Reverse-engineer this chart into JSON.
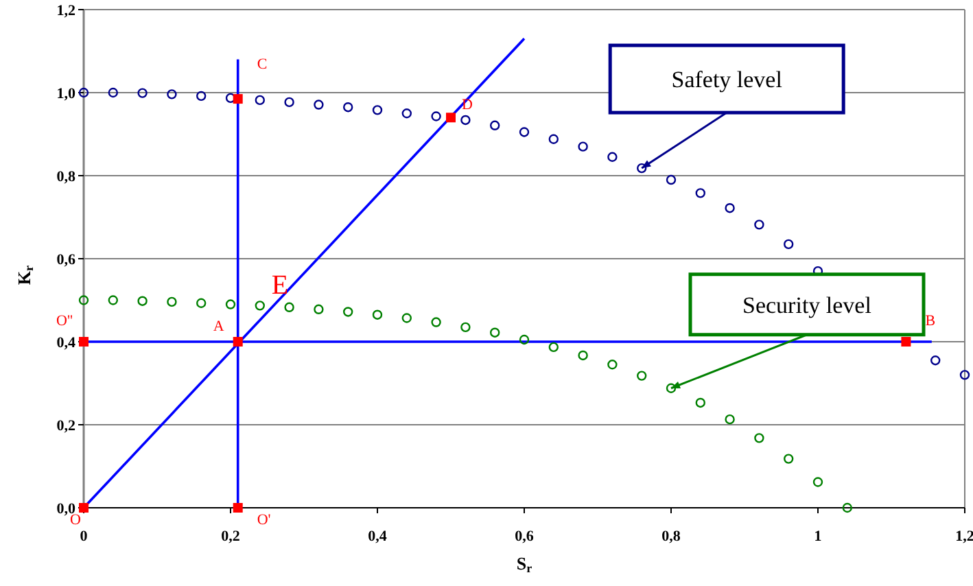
{
  "chart_data": {
    "type": "scatter",
    "xlabel": "S$_{r}$",
    "ylabel": "K$_{r}$",
    "xlim": [
      0,
      1.2
    ],
    "ylim": [
      0,
      1.2
    ],
    "xticks": [
      0,
      {
        "value": 0.2,
        "label": "0,2"
      },
      {
        "value": 0.4,
        "label": "0,4"
      },
      {
        "value": 0.6,
        "label": "0,6"
      },
      {
        "value": 0.8,
        "label": "0,8"
      },
      1,
      {
        "value": 1.2,
        "label": "1,2"
      }
    ],
    "yticks": [
      {
        "value": 0,
        "label": "0,0"
      },
      {
        "value": 0.2,
        "label": "0,2"
      },
      {
        "value": 0.4,
        "label": "0,4"
      },
      {
        "value": 0.6,
        "label": "0,6"
      },
      {
        "value": 0.8,
        "label": "0,8"
      },
      {
        "value": 1,
        "label": "1,0"
      },
      {
        "value": 1.2,
        "label": "1,2"
      }
    ],
    "grid": "y",
    "series": [
      {
        "type": "line",
        "marker": "none",
        "color": "#0000ff",
        "x": [
          0.21,
          0.21
        ],
        "values": [
          0,
          1.08
        ]
      },
      {
        "type": "line",
        "marker": "none",
        "color": "#0000ff",
        "x": [
          0,
          0.6
        ],
        "values": [
          0,
          1.13
        ]
      },
      {
        "type": "line",
        "marker": "none",
        "color": "#0000ff",
        "x": [
          0,
          1.155
        ],
        "values": [
          0.4,
          0.4
        ]
      },
      {
        "marker": "circle",
        "color": "#00008b",
        "x": [
          0,
          0.04,
          0.08,
          0.12,
          0.16,
          0.2,
          0.24,
          0.28,
          0.32,
          0.36,
          0.4,
          0.44,
          0.48,
          0.52,
          0.56,
          0.6,
          0.64,
          0.68,
          0.72,
          0.76,
          0.8,
          0.84,
          0.88,
          0.92,
          0.96,
          1.0,
          1.16,
          1.2
        ],
        "values": [
          1.0,
          1.0,
          0.999,
          0.996,
          0.992,
          0.987,
          0.982,
          0.977,
          0.971,
          0.965,
          0.958,
          0.95,
          0.943,
          0.934,
          0.921,
          0.905,
          0.888,
          0.87,
          0.845,
          0.818,
          0.79,
          0.758,
          0.722,
          0.682,
          0.635,
          0.57,
          0.355,
          0.32
        ]
      },
      {
        "marker": "circle",
        "color": "#008000",
        "x": [
          0,
          0.04,
          0.08,
          0.12,
          0.16,
          0.2,
          0.24,
          0.28,
          0.32,
          0.36,
          0.4,
          0.44,
          0.48,
          0.52,
          0.56,
          0.6,
          0.64,
          0.68,
          0.72,
          0.76,
          0.8,
          0.84,
          0.88,
          0.92,
          0.96,
          1.0,
          1.04
        ],
        "values": [
          0.5,
          0.5,
          0.498,
          0.496,
          0.493,
          0.49,
          0.487,
          0.483,
          0.478,
          0.472,
          0.465,
          0.457,
          0.447,
          0.435,
          0.422,
          0.405,
          0.387,
          0.367,
          0.345,
          0.318,
          0.288,
          0.253,
          0.213,
          0.168,
          0.118,
          0.062,
          0.0
        ]
      },
      {
        "marker": "square",
        "color": "#ff0000",
        "x": [
          0,
          0.21,
          0,
          0.21,
          0.21,
          0.5,
          1.12
        ],
        "values": [
          0,
          0,
          0.4,
          0.4,
          0.985,
          0.94,
          0.4
        ],
        "value_labels": [
          "O",
          "O'",
          "O''",
          "A",
          "C",
          "D",
          "B"
        ]
      }
    ],
    "annotations": [
      {
        "text": "Safety level",
        "x": 0.76,
        "y": 0.818
      },
      {
        "text": "Security level",
        "x": 0.8,
        "y": 0.288
      },
      "E"
    ]
  }
}
